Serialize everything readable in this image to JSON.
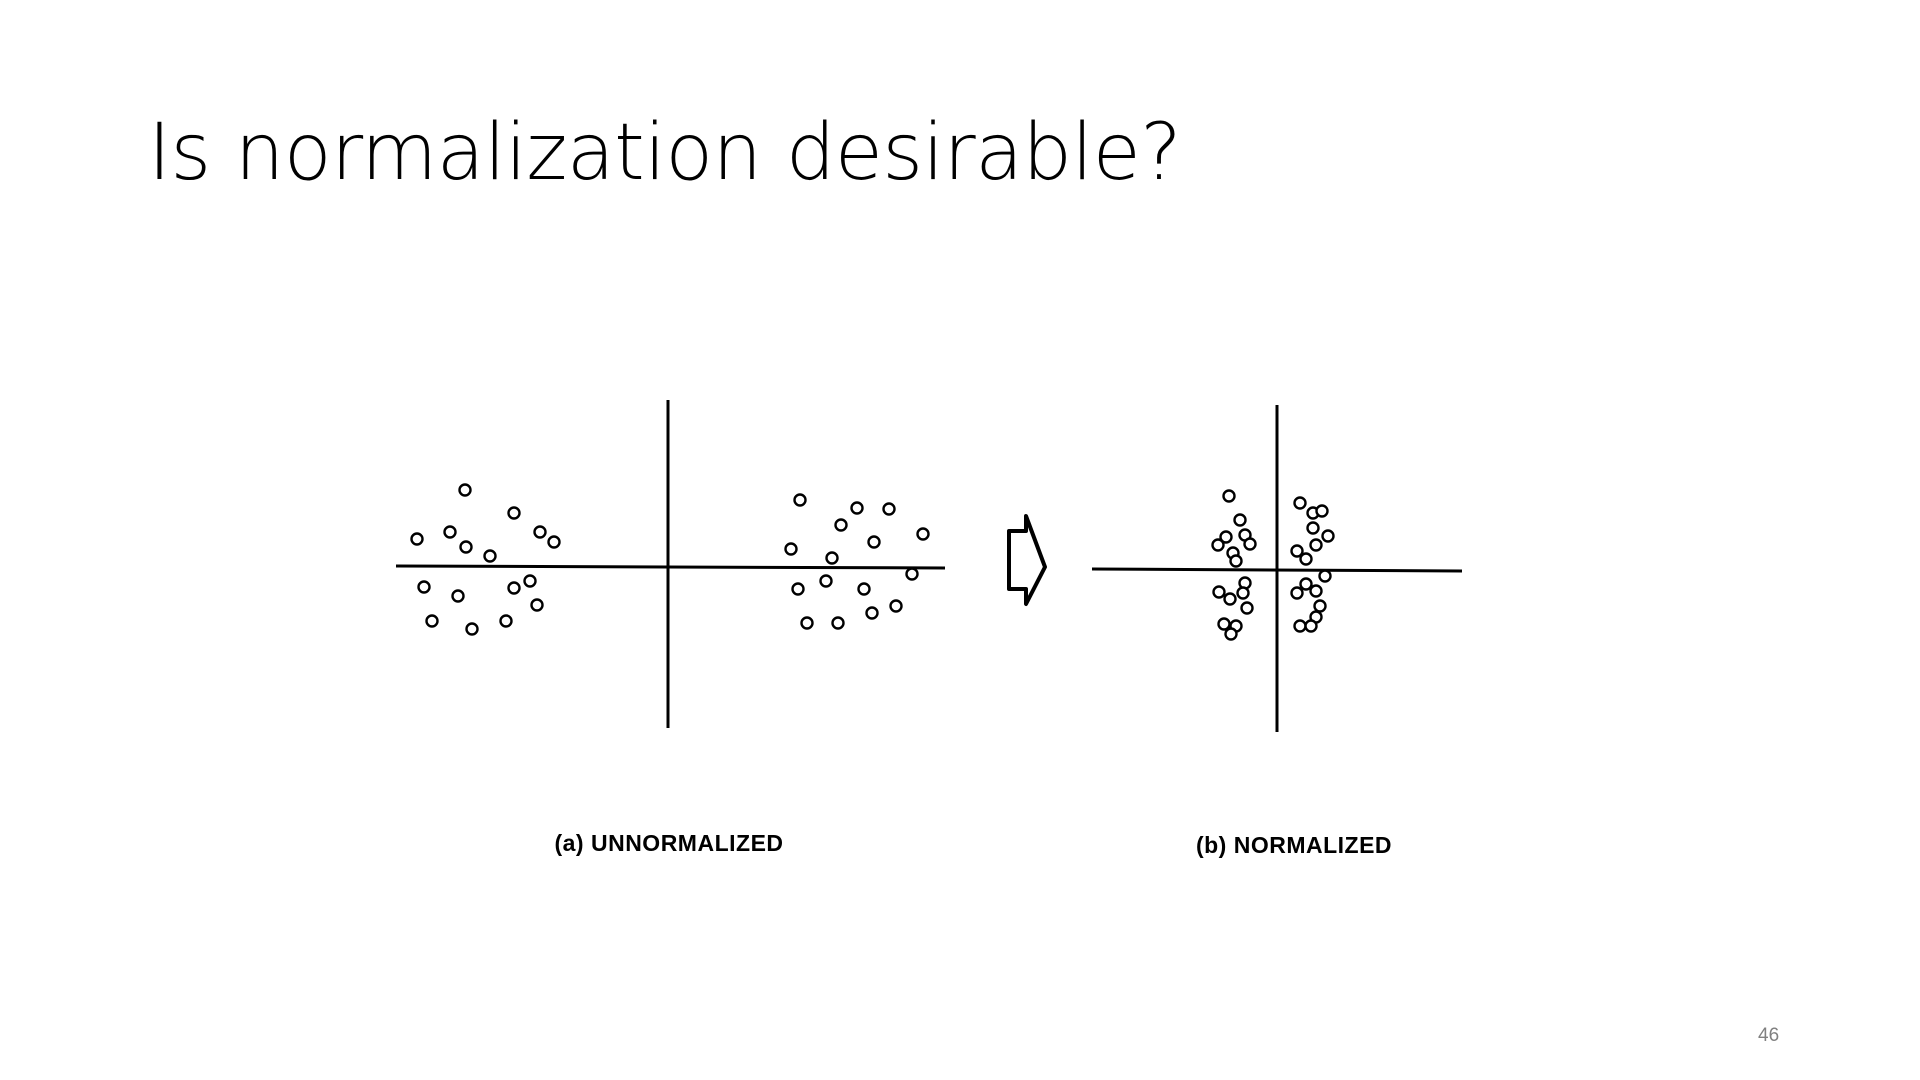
{
  "slide": {
    "title": "Is normalization desirable?",
    "page_number": "46"
  },
  "figure": {
    "caption_a": "(a) UNNORMALIZED",
    "caption_b": "(b) NORMALIZED",
    "line_color": "#000000",
    "marker": "open-circle",
    "transform_arrow_icon": "hollow-right-arrow-icon"
  }
}
